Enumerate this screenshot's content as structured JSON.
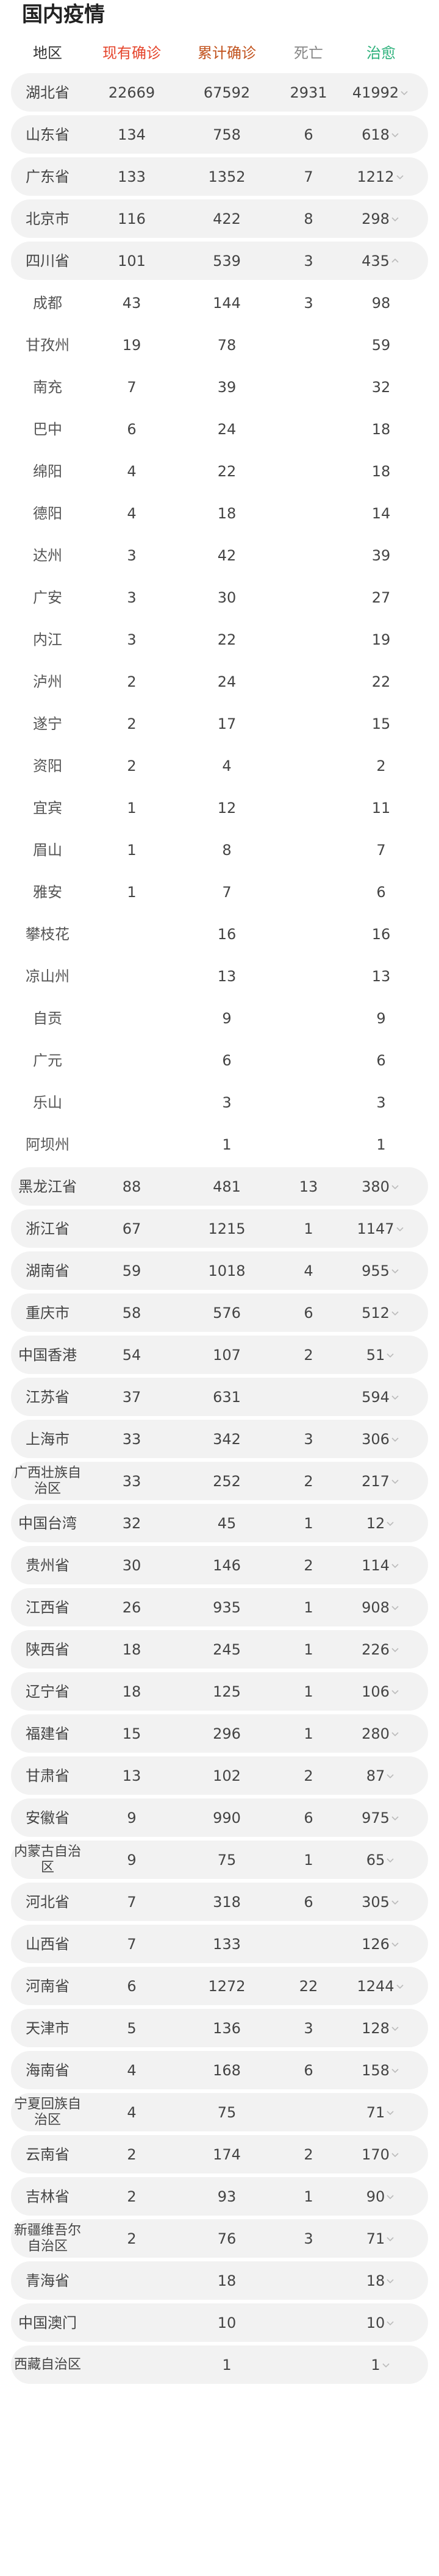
{
  "title": "国内疫情",
  "columns": {
    "region": "地区",
    "current": "现有确诊",
    "total": "累计确诊",
    "dead": "死亡",
    "cured": "治愈",
    "colors": {
      "current": "#e5452c",
      "total": "#c1531e",
      "dead": "#888888",
      "cured": "#2bb07a"
    }
  },
  "rows": [
    {
      "type": "prov",
      "name": "湖北省",
      "current": "22669",
      "total": "67592",
      "dead": "2931",
      "cured": "41992",
      "chev": "down"
    },
    {
      "type": "prov",
      "name": "山东省",
      "current": "134",
      "total": "758",
      "dead": "6",
      "cured": "618",
      "chev": "down"
    },
    {
      "type": "prov",
      "name": "广东省",
      "current": "133",
      "total": "1352",
      "dead": "7",
      "cured": "1212",
      "chev": "down"
    },
    {
      "type": "prov",
      "name": "北京市",
      "current": "116",
      "total": "422",
      "dead": "8",
      "cured": "298",
      "chev": "down"
    },
    {
      "type": "prov",
      "name": "四川省",
      "current": "101",
      "total": "539",
      "dead": "3",
      "cured": "435",
      "chev": "up"
    },
    {
      "type": "sub",
      "name": "成都",
      "current": "43",
      "total": "144",
      "dead": "3",
      "cured": "98"
    },
    {
      "type": "sub",
      "name": "甘孜州",
      "current": "19",
      "total": "78",
      "dead": "",
      "cured": "59"
    },
    {
      "type": "sub",
      "name": "南充",
      "current": "7",
      "total": "39",
      "dead": "",
      "cured": "32"
    },
    {
      "type": "sub",
      "name": "巴中",
      "current": "6",
      "total": "24",
      "dead": "",
      "cured": "18"
    },
    {
      "type": "sub",
      "name": "绵阳",
      "current": "4",
      "total": "22",
      "dead": "",
      "cured": "18"
    },
    {
      "type": "sub",
      "name": "德阳",
      "current": "4",
      "total": "18",
      "dead": "",
      "cured": "14"
    },
    {
      "type": "sub",
      "name": "达州",
      "current": "3",
      "total": "42",
      "dead": "",
      "cured": "39"
    },
    {
      "type": "sub",
      "name": "广安",
      "current": "3",
      "total": "30",
      "dead": "",
      "cured": "27"
    },
    {
      "type": "sub",
      "name": "内江",
      "current": "3",
      "total": "22",
      "dead": "",
      "cured": "19"
    },
    {
      "type": "sub",
      "name": "泸州",
      "current": "2",
      "total": "24",
      "dead": "",
      "cured": "22"
    },
    {
      "type": "sub",
      "name": "遂宁",
      "current": "2",
      "total": "17",
      "dead": "",
      "cured": "15"
    },
    {
      "type": "sub",
      "name": "资阳",
      "current": "2",
      "total": "4",
      "dead": "",
      "cured": "2"
    },
    {
      "type": "sub",
      "name": "宜宾",
      "current": "1",
      "total": "12",
      "dead": "",
      "cured": "11"
    },
    {
      "type": "sub",
      "name": "眉山",
      "current": "1",
      "total": "8",
      "dead": "",
      "cured": "7"
    },
    {
      "type": "sub",
      "name": "雅安",
      "current": "1",
      "total": "7",
      "dead": "",
      "cured": "6"
    },
    {
      "type": "sub",
      "name": "攀枝花",
      "current": "",
      "total": "16",
      "dead": "",
      "cured": "16"
    },
    {
      "type": "sub",
      "name": "凉山州",
      "current": "",
      "total": "13",
      "dead": "",
      "cured": "13"
    },
    {
      "type": "sub",
      "name": "自贡",
      "current": "",
      "total": "9",
      "dead": "",
      "cured": "9"
    },
    {
      "type": "sub",
      "name": "广元",
      "current": "",
      "total": "6",
      "dead": "",
      "cured": "6"
    },
    {
      "type": "sub",
      "name": "乐山",
      "current": "",
      "total": "3",
      "dead": "",
      "cured": "3"
    },
    {
      "type": "sub",
      "name": "阿坝州",
      "current": "",
      "total": "1",
      "dead": "",
      "cured": "1"
    },
    {
      "type": "prov",
      "name": "黑龙江省",
      "current": "88",
      "total": "481",
      "dead": "13",
      "cured": "380",
      "chev": "down"
    },
    {
      "type": "prov",
      "name": "浙江省",
      "current": "67",
      "total": "1215",
      "dead": "1",
      "cured": "1147",
      "chev": "down"
    },
    {
      "type": "prov",
      "name": "湖南省",
      "current": "59",
      "total": "1018",
      "dead": "4",
      "cured": "955",
      "chev": "down"
    },
    {
      "type": "prov",
      "name": "重庆市",
      "current": "58",
      "total": "576",
      "dead": "6",
      "cured": "512",
      "chev": "down"
    },
    {
      "type": "prov",
      "name": "中国香港",
      "current": "54",
      "total": "107",
      "dead": "2",
      "cured": "51",
      "chev": "down"
    },
    {
      "type": "prov",
      "name": "江苏省",
      "current": "37",
      "total": "631",
      "dead": "",
      "cured": "594",
      "chev": "down"
    },
    {
      "type": "prov",
      "name": "上海市",
      "current": "33",
      "total": "342",
      "dead": "3",
      "cured": "306",
      "chev": "down"
    },
    {
      "type": "prov",
      "name": "广西壮族自治区",
      "current": "33",
      "total": "252",
      "dead": "2",
      "cured": "217",
      "chev": "down"
    },
    {
      "type": "prov",
      "name": "中国台湾",
      "current": "32",
      "total": "45",
      "dead": "1",
      "cured": "12",
      "chev": "down"
    },
    {
      "type": "prov",
      "name": "贵州省",
      "current": "30",
      "total": "146",
      "dead": "2",
      "cured": "114",
      "chev": "down"
    },
    {
      "type": "prov",
      "name": "江西省",
      "current": "26",
      "total": "935",
      "dead": "1",
      "cured": "908",
      "chev": "down"
    },
    {
      "type": "prov",
      "name": "陕西省",
      "current": "18",
      "total": "245",
      "dead": "1",
      "cured": "226",
      "chev": "down"
    },
    {
      "type": "prov",
      "name": "辽宁省",
      "current": "18",
      "total": "125",
      "dead": "1",
      "cured": "106",
      "chev": "down"
    },
    {
      "type": "prov",
      "name": "福建省",
      "current": "15",
      "total": "296",
      "dead": "1",
      "cured": "280",
      "chev": "down"
    },
    {
      "type": "prov",
      "name": "甘肃省",
      "current": "13",
      "total": "102",
      "dead": "2",
      "cured": "87",
      "chev": "down"
    },
    {
      "type": "prov",
      "name": "安徽省",
      "current": "9",
      "total": "990",
      "dead": "6",
      "cured": "975",
      "chev": "down"
    },
    {
      "type": "prov",
      "name": "内蒙古自治区",
      "current": "9",
      "total": "75",
      "dead": "1",
      "cured": "65",
      "chev": "down"
    },
    {
      "type": "prov",
      "name": "河北省",
      "current": "7",
      "total": "318",
      "dead": "6",
      "cured": "305",
      "chev": "down"
    },
    {
      "type": "prov",
      "name": "山西省",
      "current": "7",
      "total": "133",
      "dead": "",
      "cured": "126",
      "chev": "down"
    },
    {
      "type": "prov",
      "name": "河南省",
      "current": "6",
      "total": "1272",
      "dead": "22",
      "cured": "1244",
      "chev": "down"
    },
    {
      "type": "prov",
      "name": "天津市",
      "current": "5",
      "total": "136",
      "dead": "3",
      "cured": "128",
      "chev": "down"
    },
    {
      "type": "prov",
      "name": "海南省",
      "current": "4",
      "total": "168",
      "dead": "6",
      "cured": "158",
      "chev": "down"
    },
    {
      "type": "prov",
      "name": "宁夏回族自治区",
      "current": "4",
      "total": "75",
      "dead": "",
      "cured": "71",
      "chev": "down"
    },
    {
      "type": "prov",
      "name": "云南省",
      "current": "2",
      "total": "174",
      "dead": "2",
      "cured": "170",
      "chev": "down"
    },
    {
      "type": "prov",
      "name": "吉林省",
      "current": "2",
      "total": "93",
      "dead": "1",
      "cured": "90",
      "chev": "down"
    },
    {
      "type": "prov",
      "name": "新疆维吾尔自治区",
      "current": "2",
      "total": "76",
      "dead": "3",
      "cured": "71",
      "chev": "down"
    },
    {
      "type": "prov",
      "name": "青海省",
      "current": "",
      "total": "18",
      "dead": "",
      "cured": "18",
      "chev": "down"
    },
    {
      "type": "prov",
      "name": "中国澳门",
      "current": "",
      "total": "10",
      "dead": "",
      "cured": "10",
      "chev": "down"
    },
    {
      "type": "prov",
      "name": "西藏自治区",
      "current": "",
      "total": "1",
      "dead": "",
      "cured": "1",
      "chev": "down"
    }
  ]
}
